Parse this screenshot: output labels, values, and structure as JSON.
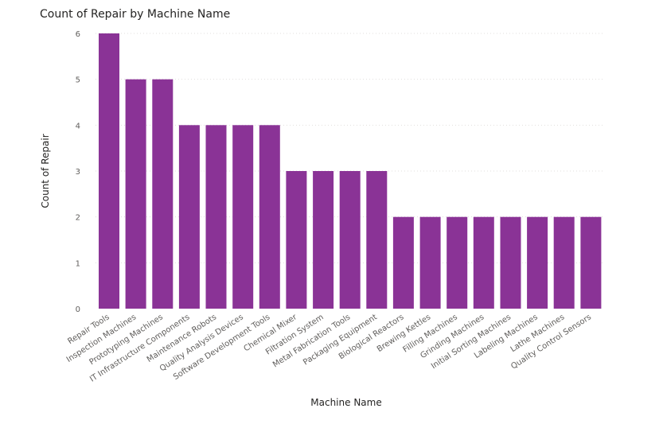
{
  "chart_data": {
    "type": "bar",
    "title": "Count of Repair by Machine Name",
    "xlabel": "Machine Name",
    "ylabel": "Count of Repair",
    "ylim": [
      0,
      6
    ],
    "yticks": [
      0,
      1,
      2,
      3,
      4,
      5,
      6
    ],
    "grid": true,
    "bar_color": "#8a3396",
    "categories": [
      "Repair Tools",
      "Inspection Machines",
      "Prototyping Machines",
      "IT Infrastructure Components",
      "Maintenance Robots",
      "Quality Analysis Devices",
      "Software Development Tools",
      "Chemical Mixer",
      "Filtration System",
      "Metal Fabrication Tools",
      "Packaging Equipment",
      "Biological Reactors",
      "Brewing Kettles",
      "Filling Machines",
      "Grinding Machines",
      "Initial Sorting Machines",
      "Labeling Machines",
      "Lathe Machines",
      "Quality Control Sensors"
    ],
    "values": [
      6,
      5,
      5,
      4,
      4,
      4,
      4,
      3,
      3,
      3,
      3,
      2,
      2,
      2,
      2,
      2,
      2,
      2,
      2
    ]
  }
}
